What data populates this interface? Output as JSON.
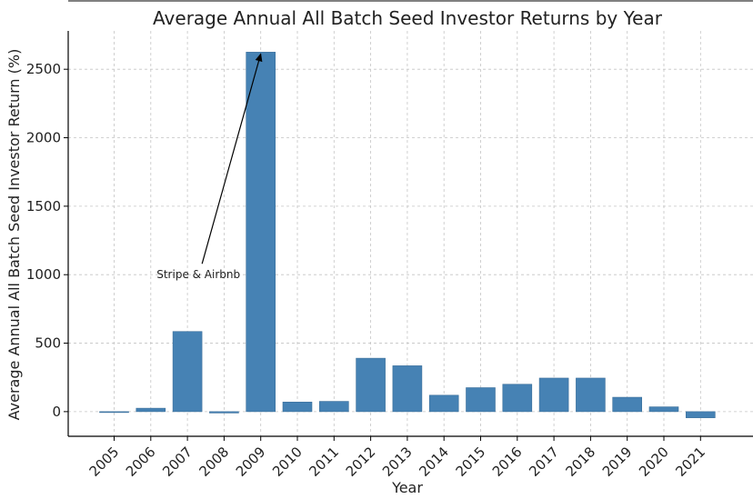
{
  "chart_data": {
    "type": "bar",
    "title": "Average Annual All Batch Seed Investor Returns by Year",
    "xlabel": "Year",
    "ylabel": "Average Annual All Batch Seed Investor Return (%)",
    "categories": [
      "2005",
      "2006",
      "2007",
      "2008",
      "2009",
      "2010",
      "2011",
      "2012",
      "2013",
      "2014",
      "2015",
      "2016",
      "2017",
      "2018",
      "2019",
      "2020",
      "2021"
    ],
    "values": [
      -5,
      25,
      585,
      -10,
      2625,
      70,
      75,
      390,
      335,
      120,
      175,
      200,
      245,
      245,
      105,
      35,
      -45
    ],
    "ylim": [
      -180,
      2780
    ],
    "yticks": [
      0,
      500,
      1000,
      1500,
      2000,
      2500
    ],
    "grid": true,
    "bar_color": "#4682B4",
    "annotations": [
      {
        "text": "Stripe & Airbnb",
        "target_category": "2009",
        "target_value": 2625,
        "text_category_offset": -1.7,
        "text_value": 1000
      }
    ]
  }
}
